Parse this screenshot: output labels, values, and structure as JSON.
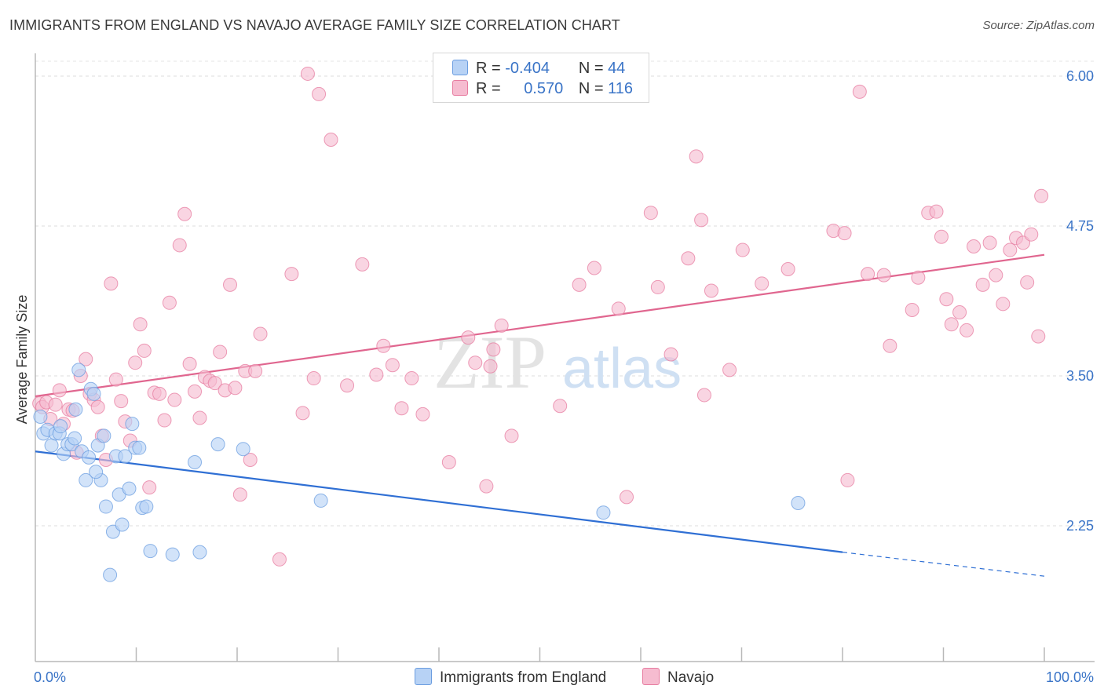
{
  "title": "IMMIGRANTS FROM ENGLAND VS NAVAJO AVERAGE FAMILY SIZE CORRELATION CHART",
  "source": "Source: ZipAtlas.com",
  "watermark": {
    "zip": "ZIP",
    "atlas": "atlas"
  },
  "colors": {
    "england": "#6b9de0",
    "england_fill": "#b7d2f5",
    "navajo": "#e77ca0",
    "navajo_fill": "#f6bcd0",
    "accent": "#3a74c7"
  },
  "legend": {
    "r_label": "R =",
    "n_label": "N =",
    "england": {
      "r": "-0.404",
      "n": "44"
    },
    "navajo": {
      "r": "0.570",
      "n": "116"
    }
  },
  "chart_data": {
    "type": "scatter",
    "title": "IMMIGRANTS FROM ENGLAND VS NAVAJO AVERAGE FAMILY SIZE CORRELATION CHART",
    "xlabel": "",
    "ylabel": "Average Family Size",
    "x_ticks": [
      "0.0%",
      "100.0%"
    ],
    "y_ticks": [
      "6.00",
      "4.75",
      "3.50",
      "2.25"
    ],
    "y_tick_values": [
      6.0,
      4.75,
      3.5,
      2.25
    ],
    "xlim": [
      0,
      100
    ],
    "ylim": [
      1.05,
      6.2
    ],
    "grid": "horizontal dashed",
    "legend_position": "top-center",
    "series": [
      {
        "name": "Immigrants from England",
        "color": "#6b9de0",
        "points": [
          [
            0.5,
            3.16
          ],
          [
            0.8,
            3.02
          ],
          [
            1.2,
            3.05
          ],
          [
            1.6,
            2.92
          ],
          [
            2.0,
            3.02
          ],
          [
            2.4,
            3.02
          ],
          [
            2.8,
            2.85
          ],
          [
            3.2,
            2.93
          ],
          [
            3.6,
            2.93
          ],
          [
            4.0,
            3.22
          ],
          [
            4.3,
            3.55
          ],
          [
            4.6,
            2.87
          ],
          [
            5.0,
            2.63
          ],
          [
            5.5,
            3.39
          ],
          [
            5.8,
            3.35
          ],
          [
            6.2,
            2.92
          ],
          [
            6.5,
            2.63
          ],
          [
            6.8,
            3.0
          ],
          [
            7.0,
            2.41
          ],
          [
            7.4,
            1.84
          ],
          [
            7.7,
            2.2
          ],
          [
            8.0,
            2.83
          ],
          [
            8.3,
            2.51
          ],
          [
            8.6,
            2.26
          ],
          [
            8.9,
            2.83
          ],
          [
            9.3,
            2.56
          ],
          [
            9.6,
            3.1
          ],
          [
            9.9,
            2.9
          ],
          [
            10.3,
            2.9
          ],
          [
            10.6,
            2.4
          ],
          [
            11.0,
            2.41
          ],
          [
            11.4,
            2.04
          ],
          [
            13.6,
            2.01
          ],
          [
            15.8,
            2.78
          ],
          [
            16.3,
            2.03
          ],
          [
            18.1,
            2.93
          ],
          [
            20.6,
            2.89
          ],
          [
            28.3,
            2.46
          ],
          [
            56.3,
            2.36
          ],
          [
            75.6,
            2.44
          ],
          [
            2.5,
            3.08
          ],
          [
            3.9,
            2.98
          ],
          [
            5.3,
            2.82
          ],
          [
            6.0,
            2.7
          ]
        ],
        "trend": {
          "x0": 0,
          "y0": 2.87,
          "x1": 80,
          "y1": 2.03,
          "dashed_to_x": 100,
          "dashed_to_y": 1.83
        }
      },
      {
        "name": "Navajo",
        "color": "#e77ca0",
        "points": [
          [
            0.4,
            3.27
          ],
          [
            0.7,
            3.24
          ],
          [
            1.1,
            3.28
          ],
          [
            1.5,
            3.14
          ],
          [
            2.0,
            3.26
          ],
          [
            2.4,
            3.38
          ],
          [
            2.8,
            3.1
          ],
          [
            3.3,
            3.22
          ],
          [
            3.7,
            3.21
          ],
          [
            4.1,
            2.86
          ],
          [
            4.5,
            3.5
          ],
          [
            5.0,
            3.64
          ],
          [
            5.4,
            3.35
          ],
          [
            5.8,
            3.3
          ],
          [
            6.2,
            3.24
          ],
          [
            6.6,
            3.0
          ],
          [
            7.0,
            2.8
          ],
          [
            7.5,
            4.27
          ],
          [
            8.0,
            3.47
          ],
          [
            8.5,
            3.29
          ],
          [
            8.9,
            3.12
          ],
          [
            9.4,
            2.96
          ],
          [
            9.9,
            3.61
          ],
          [
            10.4,
            3.93
          ],
          [
            10.8,
            3.71
          ],
          [
            11.3,
            2.57
          ],
          [
            11.8,
            3.36
          ],
          [
            12.3,
            3.35
          ],
          [
            12.8,
            3.13
          ],
          [
            13.3,
            4.11
          ],
          [
            13.8,
            3.3
          ],
          [
            14.3,
            4.59
          ],
          [
            14.8,
            4.85
          ],
          [
            15.3,
            3.6
          ],
          [
            15.8,
            3.37
          ],
          [
            16.3,
            3.15
          ],
          [
            16.8,
            3.49
          ],
          [
            17.3,
            3.46
          ],
          [
            17.8,
            3.44
          ],
          [
            18.3,
            3.7
          ],
          [
            18.8,
            3.38
          ],
          [
            19.3,
            4.26
          ],
          [
            19.8,
            3.4
          ],
          [
            20.3,
            2.51
          ],
          [
            20.8,
            3.54
          ],
          [
            21.3,
            2.8
          ],
          [
            21.8,
            3.54
          ],
          [
            22.3,
            3.85
          ],
          [
            24.2,
            1.97
          ],
          [
            25.4,
            4.35
          ],
          [
            26.5,
            3.19
          ],
          [
            27.0,
            6.02
          ],
          [
            27.6,
            3.48
          ],
          [
            28.1,
            5.85
          ],
          [
            29.3,
            5.47
          ],
          [
            32.4,
            4.43
          ],
          [
            34.5,
            3.75
          ],
          [
            35.4,
            3.59
          ],
          [
            37.3,
            3.48
          ],
          [
            38.4,
            3.18
          ],
          [
            41.0,
            2.78
          ],
          [
            43.6,
            3.61
          ],
          [
            44.7,
            2.58
          ],
          [
            45.1,
            3.58
          ],
          [
            45.4,
            3.72
          ],
          [
            47.2,
            3.0
          ],
          [
            53.9,
            4.26
          ],
          [
            55.4,
            4.4
          ],
          [
            57.8,
            4.06
          ],
          [
            61.0,
            4.86
          ],
          [
            61.7,
            4.24
          ],
          [
            63.0,
            3.68
          ],
          [
            64.7,
            4.48
          ],
          [
            65.5,
            5.33
          ],
          [
            66.0,
            4.8
          ],
          [
            66.3,
            3.34
          ],
          [
            67.0,
            4.21
          ],
          [
            68.8,
            3.55
          ],
          [
            70.1,
            4.55
          ],
          [
            72.0,
            4.27
          ],
          [
            74.6,
            4.39
          ],
          [
            79.1,
            4.71
          ],
          [
            80.2,
            4.69
          ],
          [
            81.7,
            5.87
          ],
          [
            82.5,
            4.35
          ],
          [
            84.1,
            4.34
          ],
          [
            84.7,
            3.75
          ],
          [
            86.9,
            4.05
          ],
          [
            87.5,
            4.32
          ],
          [
            88.5,
            4.86
          ],
          [
            89.3,
            4.87
          ],
          [
            89.8,
            4.66
          ],
          [
            90.3,
            4.14
          ],
          [
            90.8,
            3.93
          ],
          [
            91.6,
            4.03
          ],
          [
            92.3,
            3.88
          ],
          [
            93.0,
            4.58
          ],
          [
            93.9,
            4.26
          ],
          [
            94.6,
            4.61
          ],
          [
            95.2,
            4.34
          ],
          [
            95.9,
            4.1
          ],
          [
            96.6,
            4.55
          ],
          [
            97.2,
            4.65
          ],
          [
            97.9,
            4.61
          ],
          [
            98.3,
            4.28
          ],
          [
            98.7,
            4.68
          ],
          [
            99.4,
            3.83
          ],
          [
            99.7,
            5.0
          ],
          [
            80.5,
            2.63
          ],
          [
            58.6,
            2.49
          ],
          [
            36.3,
            3.23
          ],
          [
            33.8,
            3.51
          ],
          [
            42.9,
            3.82
          ],
          [
            30.9,
            3.42
          ],
          [
            46.2,
            3.92
          ],
          [
            52.0,
            3.25
          ]
        ],
        "trend": {
          "x0": 0,
          "y0": 3.33,
          "x1": 100,
          "y1": 4.51
        }
      }
    ]
  },
  "bottom_legend": {
    "england_label": "Immigrants from England",
    "navajo_label": "Navajo"
  }
}
